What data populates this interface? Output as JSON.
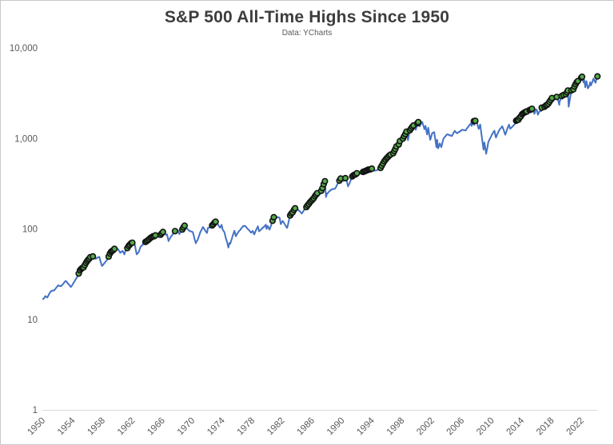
{
  "header": {
    "title": "S&P 500 All-Time Highs Since 1950",
    "subtitle": "Data: YCharts"
  },
  "chart_data": {
    "type": "line",
    "title": "S&P 500 All-Time Highs Since 1950",
    "subtitle": "Data: YCharts",
    "grid": false,
    "legend": false,
    "x_axis": {
      "range": [
        1950,
        2024.2
      ],
      "ticks": [
        1950,
        1954,
        1958,
        1962,
        1966,
        1970,
        1974,
        1978,
        1982,
        1986,
        1990,
        1994,
        1998,
        2002,
        2006,
        2010,
        2014,
        2018,
        2022
      ]
    },
    "y_axis": {
      "scale": "log",
      "range": [
        1,
        10000
      ],
      "ticks": [
        {
          "label": "1",
          "value": 1
        },
        {
          "label": "10",
          "value": 10
        },
        {
          "label": "100",
          "value": 100
        },
        {
          "label": "1,000",
          "value": 1000
        },
        {
          "label": "10,000",
          "value": 10000
        }
      ]
    },
    "colors": {
      "line": "#4472c4",
      "ath_fill": "#55aa4b",
      "ath_edge": "#121212",
      "axis": "#d9d9d9",
      "tick_text": "#595959",
      "title_text": "#3d3d3d"
    },
    "marker_series_name": "All-time highs (green dots)",
    "initial_all_time_high": 31.86,
    "series": [
      {
        "name": "S&P 500",
        "points": [
          [
            1950.0,
            16.7
          ],
          [
            1950.3,
            18.1
          ],
          [
            1950.55,
            17.4
          ],
          [
            1951.0,
            20.4
          ],
          [
            1951.5,
            21.0
          ],
          [
            1952.0,
            23.8
          ],
          [
            1952.4,
            23.3
          ],
          [
            1953.0,
            26.6
          ],
          [
            1953.2,
            25.6
          ],
          [
            1953.7,
            22.8
          ],
          [
            1954.0,
            24.8
          ],
          [
            1954.5,
            29.0
          ],
          [
            1955.0,
            36.0
          ],
          [
            1955.4,
            37.5
          ],
          [
            1955.8,
            43.5
          ],
          [
            1956.0,
            45.5
          ],
          [
            1956.3,
            48.8
          ],
          [
            1956.5,
            46.0
          ],
          [
            1956.65,
            49.6
          ],
          [
            1957.0,
            46.7
          ],
          [
            1957.5,
            49.1
          ],
          [
            1957.85,
            39.0
          ],
          [
            1958.0,
            40.0
          ],
          [
            1958.5,
            45.0
          ],
          [
            1959.0,
            55.2
          ],
          [
            1959.6,
            60.7
          ],
          [
            1960.0,
            59.9
          ],
          [
            1960.3,
            54.5
          ],
          [
            1960.6,
            57.0
          ],
          [
            1960.85,
            52.3
          ],
          [
            1961.0,
            58.1
          ],
          [
            1961.5,
            66.0
          ],
          [
            1962.0,
            71.6
          ],
          [
            1962.2,
            69.5
          ],
          [
            1962.5,
            52.3
          ],
          [
            1962.8,
            56.0
          ],
          [
            1963.0,
            63.1
          ],
          [
            1963.5,
            70.0
          ],
          [
            1964.0,
            75.0
          ],
          [
            1964.5,
            81.0
          ],
          [
            1965.0,
            84.8
          ],
          [
            1965.45,
            81.6
          ],
          [
            1966.0,
            92.4
          ],
          [
            1966.1,
            94.1
          ],
          [
            1966.4,
            86.0
          ],
          [
            1966.55,
            87.0
          ],
          [
            1966.75,
            73.2
          ],
          [
            1967.0,
            80.3
          ],
          [
            1967.7,
            96.7
          ],
          [
            1967.85,
            91.0
          ],
          [
            1968.0,
            96.5
          ],
          [
            1968.2,
            87.7
          ],
          [
            1968.9,
            108.4
          ],
          [
            1969.0,
            103.9
          ],
          [
            1969.4,
            97.8
          ],
          [
            1969.6,
            94.0
          ],
          [
            1970.0,
            92.1
          ],
          [
            1970.4,
            69.3
          ],
          [
            1970.7,
            78.0
          ],
          [
            1971.0,
            92.2
          ],
          [
            1971.35,
            104.8
          ],
          [
            1971.9,
            90.2
          ],
          [
            1972.0,
            102.1
          ],
          [
            1972.5,
            107.0
          ],
          [
            1973.05,
            120.2
          ],
          [
            1973.65,
            103.0
          ],
          [
            1973.85,
            111.0
          ],
          [
            1974.0,
            97.6
          ],
          [
            1974.2,
            93.0
          ],
          [
            1974.75,
            62.3
          ],
          [
            1974.9,
            70.0
          ],
          [
            1975.0,
            68.6
          ],
          [
            1975.55,
            95.2
          ],
          [
            1975.75,
            83.0
          ],
          [
            1976.0,
            90.2
          ],
          [
            1976.75,
            107.8
          ],
          [
            1977.0,
            107.5
          ],
          [
            1977.8,
            90.7
          ],
          [
            1978.0,
            95.1
          ],
          [
            1978.2,
            86.9
          ],
          [
            1978.7,
            107.0
          ],
          [
            1978.85,
            94.0
          ],
          [
            1979.0,
            96.1
          ],
          [
            1979.75,
            111.3
          ],
          [
            1979.85,
            99.9
          ],
          [
            1980.0,
            107.9
          ],
          [
            1980.25,
            98.2
          ],
          [
            1980.9,
            140.5
          ],
          [
            1981.0,
            135.8
          ],
          [
            1981.6,
            133.0
          ],
          [
            1981.75,
            112.8
          ],
          [
            1982.0,
            122.6
          ],
          [
            1982.6,
            102.4
          ],
          [
            1983.0,
            140.6
          ],
          [
            1983.75,
            172.6
          ],
          [
            1984.0,
            164.9
          ],
          [
            1984.55,
            147.8
          ],
          [
            1985.0,
            167.2
          ],
          [
            1985.5,
            189.0
          ],
          [
            1986.0,
            211.3
          ],
          [
            1986.7,
            252.8
          ],
          [
            1986.75,
            231.3
          ],
          [
            1987.0,
            242.2
          ],
          [
            1987.65,
            336.8
          ],
          [
            1987.8,
            225.0
          ],
          [
            1987.95,
            247.0
          ],
          [
            1988.0,
            247.1
          ],
          [
            1988.5,
            272.0
          ],
          [
            1989.0,
            277.7
          ],
          [
            1989.75,
            359.8
          ],
          [
            1990.0,
            353.4
          ],
          [
            1990.1,
            338.0
          ],
          [
            1990.45,
            368.0
          ],
          [
            1990.75,
            295.5
          ],
          [
            1991.0,
            330.2
          ],
          [
            1991.3,
            380.0
          ],
          [
            1992.0,
            417.1
          ],
          [
            1992.5,
            408.0
          ],
          [
            1993.0,
            435.7
          ],
          [
            1994.0,
            466.4
          ],
          [
            1994.3,
            438.9
          ],
          [
            1995.0,
            459.3
          ],
          [
            1995.5,
            545.0
          ],
          [
            1996.0,
            615.9
          ],
          [
            1996.5,
            670.0
          ],
          [
            1996.55,
            635.0
          ],
          [
            1997.0,
            740.7
          ],
          [
            1997.2,
            816.0
          ],
          [
            1997.3,
            737.0
          ],
          [
            1997.75,
            983.0
          ],
          [
            1997.85,
            877.0
          ],
          [
            1998.0,
            970.4
          ],
          [
            1998.55,
            1186.8
          ],
          [
            1998.75,
            957.3
          ],
          [
            1999.0,
            1229.2
          ],
          [
            1999.55,
            1418.8
          ],
          [
            1999.8,
            1247.4
          ],
          [
            2000.0,
            1469.3
          ],
          [
            2000.2,
            1527.5
          ],
          [
            2000.3,
            1356.6
          ],
          [
            2000.65,
            1520.8
          ],
          [
            2000.95,
            1264.7
          ],
          [
            2001.0,
            1320.3
          ],
          [
            2001.1,
            1373.7
          ],
          [
            2001.3,
            1103.3
          ],
          [
            2001.45,
            1312.8
          ],
          [
            2001.72,
            965.8
          ],
          [
            2002.0,
            1148.1
          ],
          [
            2002.25,
            1172.5
          ],
          [
            2002.55,
            797.7
          ],
          [
            2002.65,
            965.0
          ],
          [
            2002.78,
            776.8
          ],
          [
            2003.0,
            879.8
          ],
          [
            2003.2,
            800.7
          ],
          [
            2003.5,
            1000.0
          ],
          [
            2004.0,
            1111.9
          ],
          [
            2004.6,
            1060.7
          ],
          [
            2005.0,
            1211.9
          ],
          [
            2005.3,
            1137.5
          ],
          [
            2006.0,
            1248.3
          ],
          [
            2006.45,
            1223.7
          ],
          [
            2007.0,
            1418.3
          ],
          [
            2007.15,
            1459.7
          ],
          [
            2007.25,
            1374.1
          ],
          [
            2007.55,
            1553.1
          ],
          [
            2007.62,
            1406.7
          ],
          [
            2007.75,
            1565.2
          ],
          [
            2008.0,
            1468.4
          ],
          [
            2008.2,
            1273.4
          ],
          [
            2008.4,
            1426.6
          ],
          [
            2008.85,
            752.4
          ],
          [
            2008.95,
            903.3
          ],
          [
            2009.2,
            676.5
          ],
          [
            2009.5,
            919.3
          ],
          [
            2010.0,
            1115.1
          ],
          [
            2010.3,
            1217.3
          ],
          [
            2010.5,
            1022.6
          ],
          [
            2011.0,
            1257.6
          ],
          [
            2011.35,
            1363.6
          ],
          [
            2011.75,
            1099.2
          ],
          [
            2012.0,
            1257.6
          ],
          [
            2012.25,
            1419.0
          ],
          [
            2012.4,
            1278.0
          ],
          [
            2013.0,
            1426.2
          ],
          [
            2013.2,
            1569.2
          ],
          [
            2013.5,
            1606.3
          ],
          [
            2014.0,
            1848.4
          ],
          [
            2014.7,
            2011.4
          ],
          [
            2014.8,
            1862.5
          ],
          [
            2015.0,
            2058.9
          ],
          [
            2015.4,
            2130.8
          ],
          [
            2015.65,
            1867.6
          ],
          [
            2015.85,
            2099.0
          ],
          [
            2016.0,
            2043.9
          ],
          [
            2016.1,
            1829.1
          ],
          [
            2016.5,
            2098.9
          ],
          [
            2016.55,
            2001.0
          ],
          [
            2016.62,
            2190.2
          ],
          [
            2016.85,
            2085.2
          ],
          [
            2017.0,
            2238.8
          ],
          [
            2017.5,
            2423.4
          ],
          [
            2018.07,
            2872.9
          ],
          [
            2018.15,
            2581.0
          ],
          [
            2018.7,
            2930.8
          ],
          [
            2018.97,
            2351.1
          ],
          [
            2019.0,
            2506.9
          ],
          [
            2019.3,
            2945.8
          ],
          [
            2019.4,
            2744.5
          ],
          [
            2019.55,
            3025.9
          ],
          [
            2019.6,
            2847.1
          ],
          [
            2020.0,
            3230.8
          ],
          [
            2020.12,
            3386.2
          ],
          [
            2020.22,
            2237.4
          ],
          [
            2020.6,
            3397.2
          ],
          [
            2020.7,
            3236.9
          ],
          [
            2021.0,
            3756.1
          ],
          [
            2021.3,
            4185.5
          ],
          [
            2021.45,
            4297.5
          ],
          [
            2021.55,
            4536.0
          ],
          [
            2021.75,
            4300.5
          ],
          [
            2021.9,
            4701.5
          ],
          [
            2021.95,
            4568.0
          ],
          [
            2022.02,
            4796.6
          ],
          [
            2022.2,
            4170.7
          ],
          [
            2022.3,
            4463.1
          ],
          [
            2022.45,
            3666.8
          ],
          [
            2022.6,
            4305.2
          ],
          [
            2022.78,
            3577.0
          ],
          [
            2023.0,
            3839.5
          ],
          [
            2023.1,
            4179.8
          ],
          [
            2023.2,
            3855.8
          ],
          [
            2023.55,
            4589.0
          ],
          [
            2023.82,
            4117.4
          ],
          [
            2024.0,
            4769.8
          ],
          [
            2024.15,
            5026.6
          ]
        ]
      }
    ]
  }
}
